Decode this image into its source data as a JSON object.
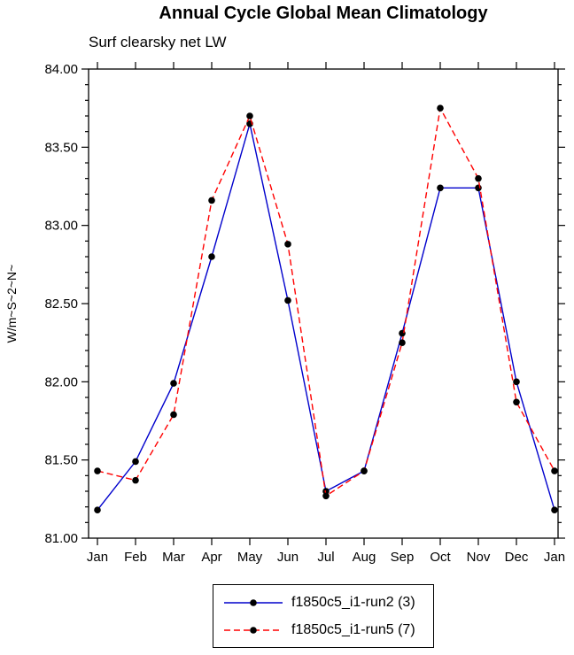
{
  "title": "Annual Cycle Global Mean Climatology",
  "subtitle": "Surf clearsky net LW",
  "chart_data": {
    "type": "line",
    "title": "Annual Cycle Global Mean Climatology",
    "subtitle": "Surf clearsky net LW",
    "xlabel": "",
    "ylabel": "W/m~S~2~N~",
    "categories": [
      "Jan",
      "Feb",
      "Mar",
      "Apr",
      "May",
      "Jun",
      "Jul",
      "Aug",
      "Sep",
      "Oct",
      "Nov",
      "Dec",
      "Jan"
    ],
    "ylim": [
      81.0,
      84.0
    ],
    "ytick_step": 0.5,
    "ytick_minor_step": 0.1,
    "ytick_format_decimals": 2,
    "grid": false,
    "legend_position": "bottom",
    "series": [
      {
        "name": "f1850c5_i1-run2 (3)",
        "color": "#0000cc",
        "line_style": "solid",
        "marker": "filled-circle",
        "marker_color": "#000000",
        "values": [
          81.18,
          81.49,
          81.99,
          82.8,
          83.65,
          82.52,
          81.3,
          81.43,
          82.31,
          83.24,
          83.24,
          82.0,
          81.18
        ]
      },
      {
        "name": "f1850c5_i1-run5 (7)",
        "color": "#ff0000",
        "line_style": "dashed",
        "marker": "filled-circle",
        "marker_color": "#000000",
        "values": [
          81.43,
          81.37,
          81.79,
          83.16,
          83.7,
          82.88,
          81.27,
          81.43,
          82.25,
          83.75,
          83.3,
          81.87,
          81.43
        ]
      }
    ]
  }
}
